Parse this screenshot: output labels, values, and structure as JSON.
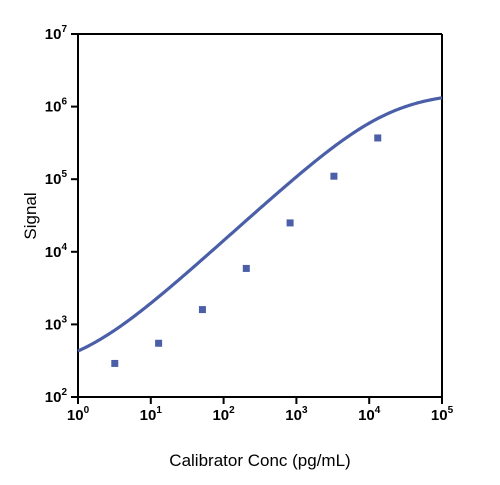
{
  "chart_data": {
    "type": "line",
    "title": "",
    "xlabel": "Calibrator Conc (pg/mL)",
    "ylabel": "Signal",
    "x_scale": "log10",
    "y_scale": "log10",
    "xlim": [
      1,
      100000
    ],
    "ylim": [
      100,
      10000000
    ],
    "x_ticks": [
      {
        "base": "10",
        "exp": "0"
      },
      {
        "base": "10",
        "exp": "1"
      },
      {
        "base": "10",
        "exp": "2"
      },
      {
        "base": "10",
        "exp": "3"
      },
      {
        "base": "10",
        "exp": "4"
      },
      {
        "base": "10",
        "exp": "5"
      }
    ],
    "y_ticks": [
      {
        "base": "10",
        "exp": "2"
      },
      {
        "base": "10",
        "exp": "3"
      },
      {
        "base": "10",
        "exp": "4"
      },
      {
        "base": "10",
        "exp": "5"
      },
      {
        "base": "10",
        "exp": "6"
      },
      {
        "base": "10",
        "exp": "7"
      }
    ],
    "grid": false,
    "legend": "none",
    "series": [
      {
        "color": "#4a5fa8",
        "marker": "square",
        "points": [
          {
            "x": 3.2,
            "y": 290
          },
          {
            "x": 12.8,
            "y": 550
          },
          {
            "x": 51.2,
            "y": 1600
          },
          {
            "x": 205,
            "y": 5900
          },
          {
            "x": 819,
            "y": 25000
          },
          {
            "x": 3277,
            "y": 110000
          },
          {
            "x": 13107,
            "y": 370000
          }
        ],
        "fit_curve": {
          "model": "4PL",
          "bottom": 215,
          "top": 1600000,
          "ec50": 18000,
          "hill": 0.91
        }
      }
    ]
  }
}
